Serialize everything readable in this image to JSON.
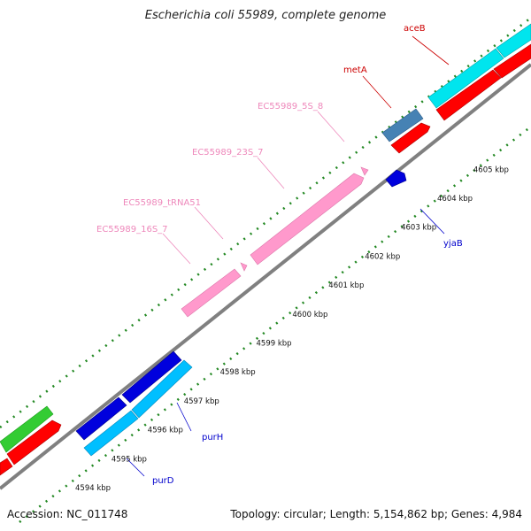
{
  "title": "Escherichia coli 55989, complete genome",
  "footer": {
    "accession": "Accession: NC_011748",
    "summary": "Topology: circular; Length: 5,154,862 bp; Genes: 4,984"
  },
  "colors": {
    "rrna": "#ff99cc",
    "rrna_label": "#ee88bb",
    "forward_cds": "#ff0000",
    "forward_cds_light": "#00e5ee",
    "forward_cds_blue": "#4682b4",
    "reverse_cds_blue": "#0000dd",
    "reverse_cds_light": "#00bfff",
    "green": "#33cc33",
    "tick": "#228822",
    "backbone": "#808080",
    "red_label": "#cc0000",
    "blue_label": "#0000cc"
  },
  "ruler": {
    "ticks": [
      {
        "label": "4594 kbp"
      },
      {
        "label": "4595 kbp"
      },
      {
        "label": "4596 kbp"
      },
      {
        "label": "4597 kbp"
      },
      {
        "label": "4598 kbp"
      },
      {
        "label": "4599 kbp"
      },
      {
        "label": "4600 kbp"
      },
      {
        "label": "4601 kbp"
      },
      {
        "label": "4602 kbp"
      },
      {
        "label": "4603 kbp"
      },
      {
        "label": "4604 kbp"
      },
      {
        "label": "4605 kbp"
      }
    ]
  },
  "feature_labels": {
    "aceB": "aceB",
    "metA": "metA",
    "ec5s": "EC55989_5S_8",
    "ec23s": "EC55989_23S_7",
    "ectrna": "EC55989_tRNA51",
    "ec16s": "EC55989_16S_7",
    "yjaB": "yjaB",
    "purH": "purH",
    "purD": "purD"
  }
}
